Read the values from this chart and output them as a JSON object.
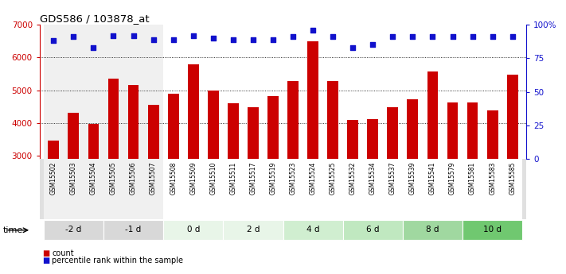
{
  "title": "GDS586 / 103878_at",
  "samples": [
    "GSM15502",
    "GSM15503",
    "GSM15504",
    "GSM15505",
    "GSM15506",
    "GSM15507",
    "GSM15508",
    "GSM15509",
    "GSM15510",
    "GSM15511",
    "GSM15517",
    "GSM15519",
    "GSM15523",
    "GSM15524",
    "GSM15525",
    "GSM15532",
    "GSM15534",
    "GSM15537",
    "GSM15539",
    "GSM15541",
    "GSM15579",
    "GSM15581",
    "GSM15583",
    "GSM15585"
  ],
  "counts": [
    3450,
    4300,
    3980,
    5350,
    5150,
    4550,
    4880,
    5780,
    5000,
    4600,
    4470,
    4820,
    5280,
    6500,
    5280,
    4100,
    4120,
    4480,
    4720,
    5580,
    4620,
    4620,
    4370,
    5480
  ],
  "percentiles": [
    88,
    91,
    83,
    92,
    92,
    89,
    89,
    92,
    90,
    89,
    89,
    89,
    91,
    96,
    91,
    83,
    85,
    91,
    91,
    91,
    91,
    91,
    91,
    91
  ],
  "time_groups": {
    "-2 d": [
      "GSM15502",
      "GSM15503",
      "GSM15504"
    ],
    "-1 d": [
      "GSM15505",
      "GSM15506",
      "GSM15507"
    ],
    "0 d": [
      "GSM15508",
      "GSM15509",
      "GSM15510"
    ],
    "2 d": [
      "GSM15511",
      "GSM15517",
      "GSM15519"
    ],
    "4 d": [
      "GSM15523",
      "GSM15524",
      "GSM15525"
    ],
    "6 d": [
      "GSM15532",
      "GSM15534",
      "GSM15537"
    ],
    "8 d": [
      "GSM15539",
      "GSM15541",
      "GSM15579"
    ],
    "10 d": [
      "GSM15581",
      "GSM15583",
      "GSM15585"
    ]
  },
  "group_order": [
    "-2 d",
    "-1 d",
    "0 d",
    "2 d",
    "4 d",
    "6 d",
    "8 d",
    "10 d"
  ],
  "main_group_colors": [
    "#f0f0f0",
    "#f0f0f0",
    "#ffffff",
    "#ffffff",
    "#ffffff",
    "#ffffff",
    "#ffffff",
    "#ffffff"
  ],
  "time_band_colors": [
    "#d8d8d8",
    "#d8d8d8",
    "#e8f5e8",
    "#e8f5e8",
    "#d0eed0",
    "#c0e8c0",
    "#a0d8a0",
    "#70c870"
  ],
  "bar_color": "#cc0000",
  "dot_color": "#1111cc",
  "ylim_left": [
    2900,
    7000
  ],
  "ylim_right": [
    0,
    100
  ],
  "yticks_left": [
    3000,
    4000,
    5000,
    6000,
    7000
  ],
  "yticks_right": [
    0,
    25,
    50,
    75,
    100
  ],
  "bg_color": "#ffffff",
  "time_label": "time",
  "legend_count": "count",
  "legend_pct": "percentile rank within the sample"
}
